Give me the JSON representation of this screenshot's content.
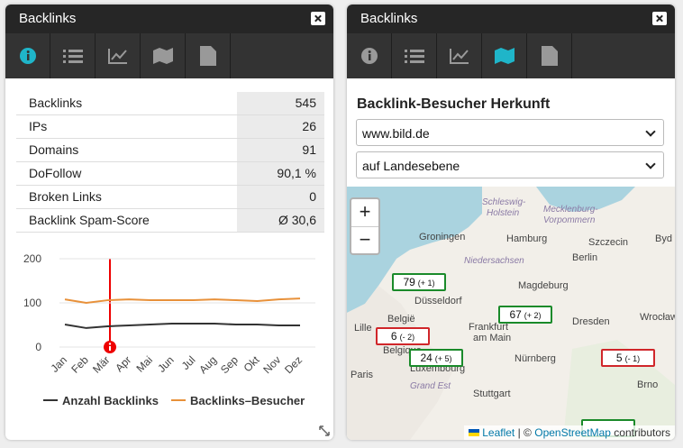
{
  "left_panel": {
    "title": "Backlinks",
    "table": {
      "rows": [
        [
          "Backlinks",
          "545"
        ],
        [
          "IPs",
          "26"
        ],
        [
          "Domains",
          "91"
        ],
        [
          "DoFollow",
          "90,1 %"
        ],
        [
          "Broken Links",
          "0"
        ],
        [
          "Backlink Spam-Score",
          "Ø 30,6"
        ]
      ]
    }
  },
  "chart_data": {
    "type": "line",
    "categories": [
      "Jan",
      "Feb",
      "Mär",
      "Apr",
      "Mai",
      "Jun",
      "Jul",
      "Aug",
      "Sep",
      "Okt",
      "Nov",
      "Dez"
    ],
    "series": [
      {
        "name": "Anzahl Backlinks",
        "color": "#333333",
        "values": [
          51,
          43,
          47,
          49,
          51,
          53,
          53,
          53,
          51,
          51,
          49,
          49
        ]
      },
      {
        "name": "Backlinks–Besucher",
        "color": "#e8913a",
        "values": [
          108,
          100,
          106,
          108,
          106,
          106,
          106,
          108,
          106,
          104,
          108,
          110
        ]
      }
    ],
    "ylim": [
      0,
      200
    ],
    "yticks": [
      0,
      100,
      200
    ],
    "grid": true
  },
  "right_panel": {
    "title": "Backlinks",
    "heading": "Backlink-Besucher Herkunft",
    "select_site": "www.bild.de",
    "select_level": "auf Landesebene",
    "zoom_in": "+",
    "zoom_out": "−",
    "places": [
      "Schleswig-",
      "Holstein",
      "Mecklenburg-",
      "Vorpommern",
      "Groningen",
      "Hamburg",
      "Szczecin",
      "Byd",
      "Niedersachsen",
      "Berlin",
      "Magdeburg",
      "Düsseldorf",
      "België",
      "Belgique",
      "Frankfurt",
      "am Main",
      "Dresden",
      "Wrocław",
      "Paris",
      "Luxembourg",
      "Grand Est",
      "Nürnberg",
      "Stuttgart",
      "Brno",
      "Lille"
    ],
    "markers": [
      {
        "value": "79",
        "change": "(+ 1)"
      },
      {
        "value": "6",
        "change": "(- 2)"
      },
      {
        "value": "67",
        "change": "(+ 2)"
      },
      {
        "value": "24",
        "change": "(+ 5)"
      },
      {
        "value": "5",
        "change": "(- 1)"
      }
    ],
    "attribution": {
      "leaflet": "Leaflet",
      "sep": "| ©",
      "osm": "OpenStreetMap",
      "contributors": "contributors"
    }
  }
}
